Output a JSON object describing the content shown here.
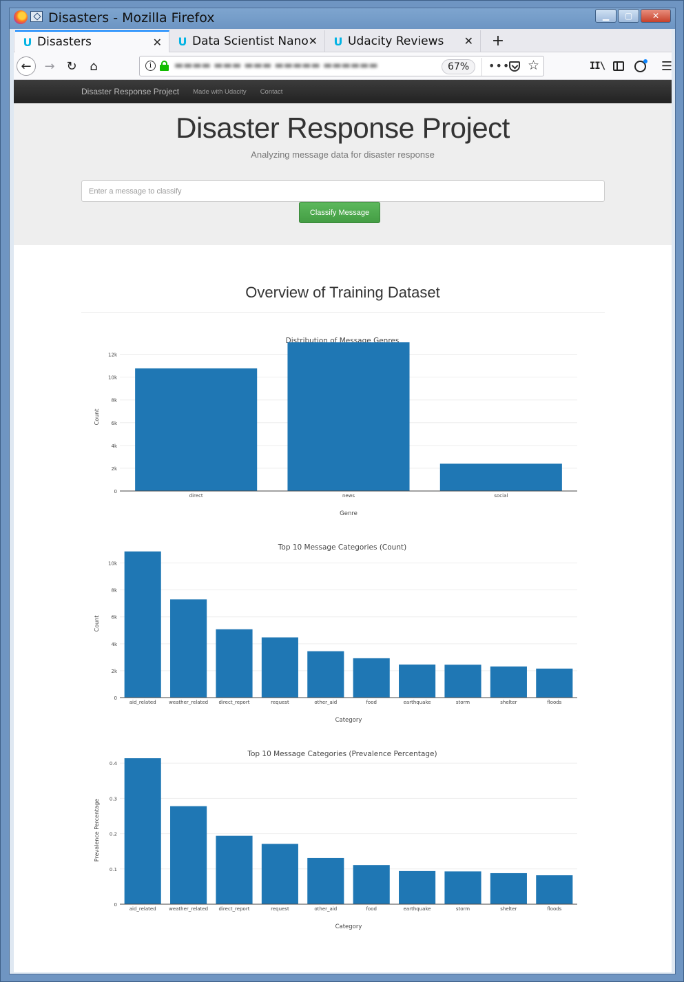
{
  "window": {
    "title": "Disasters - Mozilla Firefox"
  },
  "tabs": [
    {
      "label": "Disasters",
      "active": true
    },
    {
      "label": "Data Scientist Nano",
      "active": false
    },
    {
      "label": "Udacity Reviews",
      "active": false
    }
  ],
  "toolbar": {
    "zoom": "67%",
    "more_label": "•••",
    "menu_label": "☰"
  },
  "site_nav": {
    "brand": "Disaster Response Project",
    "links": [
      "Made with Udacity",
      "Contact"
    ]
  },
  "hero": {
    "title": "Disaster Response Project",
    "subtitle": "Analyzing message data for disaster response",
    "input_placeholder": "Enter a message to classify",
    "button_label": "Classify Message"
  },
  "overview_title": "Overview of Training Dataset",
  "colors": {
    "bar": "#1f77b4",
    "button": "#5cb85c",
    "navbar": "#222222",
    "tab_accent": "#0a84ff"
  },
  "chart_data": [
    {
      "type": "bar",
      "title": "Distribution of Message Genres",
      "xlabel": "Genre",
      "ylabel": "Count",
      "categories": [
        "direct",
        "news",
        "social"
      ],
      "values": [
        10766,
        13054,
        2396
      ],
      "ylim": [
        0,
        13000
      ],
      "yticks": [
        0,
        2000,
        4000,
        6000,
        8000,
        10000,
        12000
      ],
      "ytick_labels": [
        "0",
        "2k",
        "4k",
        "6k",
        "8k",
        "10k",
        "12k"
      ],
      "grid": true
    },
    {
      "type": "bar",
      "title": "Top 10 Message Categories (Count)",
      "xlabel": "Category",
      "ylabel": "Count",
      "categories": [
        "aid_related",
        "weather_related",
        "direct_report",
        "request",
        "other_aid",
        "food",
        "earthquake",
        "storm",
        "shelter",
        "floods"
      ],
      "values": [
        10860,
        7297,
        5075,
        4474,
        3446,
        2923,
        2455,
        2443,
        2314,
        2155
      ],
      "ylim": [
        0,
        11000
      ],
      "yticks": [
        0,
        2000,
        4000,
        6000,
        8000,
        10000
      ],
      "ytick_labels": [
        "0",
        "2k",
        "4k",
        "6k",
        "8k",
        "10k"
      ],
      "grid": true
    },
    {
      "type": "bar",
      "title": "Top 10 Message Categories (Prevalence Percentage)",
      "xlabel": "Category",
      "ylabel": "Prevalence Percentage",
      "categories": [
        "aid_related",
        "weather_related",
        "direct_report",
        "request",
        "other_aid",
        "food",
        "earthquake",
        "storm",
        "shelter",
        "floods"
      ],
      "values": [
        0.414,
        0.278,
        0.194,
        0.171,
        0.131,
        0.111,
        0.094,
        0.093,
        0.088,
        0.082
      ],
      "ylim": [
        0,
        0.42
      ],
      "yticks": [
        0,
        0.1,
        0.2,
        0.3,
        0.4
      ],
      "ytick_labels": [
        "0",
        "0.1",
        "0.2",
        "0.3",
        "0.4"
      ],
      "grid": true
    }
  ]
}
